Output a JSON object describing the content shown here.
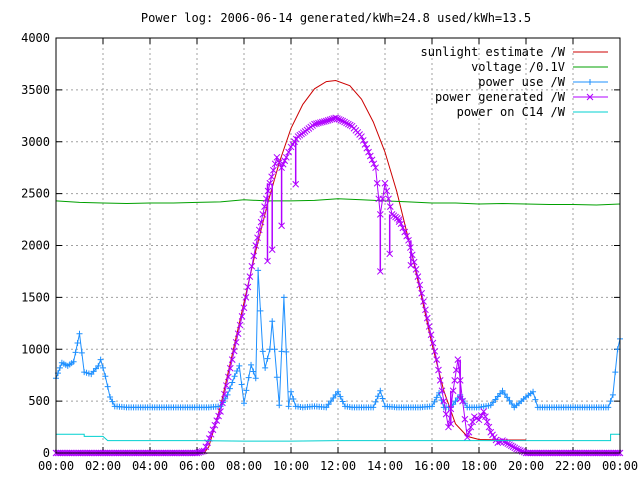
{
  "chart_data": {
    "type": "line",
    "title": "Power log: 2006-06-14 generated/kWh=24.8 used/kWh=13.5",
    "xlabel": "",
    "ylabel": "",
    "xlim": [
      "00:00",
      "24:00"
    ],
    "ylim": [
      0,
      4000
    ],
    "grid": true,
    "legend_position": "top-right",
    "x_ticks": [
      "00:00",
      "02:00",
      "04:00",
      "06:00",
      "08:00",
      "10:00",
      "12:00",
      "14:00",
      "16:00",
      "18:00",
      "20:00",
      "22:00",
      "00:00"
    ],
    "y_ticks": [
      "0",
      "500",
      "1000",
      "1500",
      "2000",
      "2500",
      "3000",
      "3500",
      "4000"
    ],
    "series": [
      {
        "name": "sunlight estimate /W",
        "color": "#cc0000",
        "marker": "none",
        "points": [
          [
            6.3,
            0
          ],
          [
            6.5,
            60
          ],
          [
            7,
            450
          ],
          [
            7.5,
            950
          ],
          [
            8,
            1450
          ],
          [
            8.5,
            1950
          ],
          [
            9,
            2400
          ],
          [
            9.5,
            2800
          ],
          [
            10,
            3130
          ],
          [
            10.5,
            3360
          ],
          [
            11,
            3510
          ],
          [
            11.5,
            3580
          ],
          [
            11.9,
            3590
          ],
          [
            12.5,
            3540
          ],
          [
            13,
            3410
          ],
          [
            13.5,
            3190
          ],
          [
            14,
            2900
          ],
          [
            14.5,
            2520
          ],
          [
            15,
            2060
          ],
          [
            15.5,
            1560
          ],
          [
            16,
            1050
          ],
          [
            16.5,
            600
          ],
          [
            17,
            280
          ],
          [
            17.5,
            160
          ],
          [
            18,
            130
          ],
          [
            19,
            125
          ],
          [
            20,
            125
          ]
        ]
      },
      {
        "name": "voltage /0.1V",
        "color": "#00a000",
        "marker": "none",
        "points": [
          [
            0,
            2430
          ],
          [
            1,
            2415
          ],
          [
            2,
            2410
          ],
          [
            3,
            2405
          ],
          [
            4,
            2410
          ],
          [
            5,
            2410
          ],
          [
            6,
            2415
          ],
          [
            7,
            2420
          ],
          [
            8,
            2440
          ],
          [
            9,
            2430
          ],
          [
            10,
            2430
          ],
          [
            11,
            2435
          ],
          [
            12,
            2450
          ],
          [
            13,
            2440
          ],
          [
            14,
            2430
          ],
          [
            15,
            2420
          ],
          [
            16,
            2410
          ],
          [
            17,
            2410
          ],
          [
            18,
            2400
          ],
          [
            19,
            2405
          ],
          [
            20,
            2400
          ],
          [
            21,
            2395
          ],
          [
            22,
            2395
          ],
          [
            23,
            2390
          ],
          [
            24,
            2400
          ]
        ]
      },
      {
        "name": "power use /W",
        "color": "#1e90ff",
        "marker": "plus",
        "points": [
          [
            0,
            720
          ],
          [
            0.25,
            870
          ],
          [
            0.5,
            840
          ],
          [
            0.75,
            880
          ],
          [
            1,
            1150
          ],
          [
            1.2,
            780
          ],
          [
            1.5,
            760
          ],
          [
            1.8,
            840
          ],
          [
            1.9,
            900
          ],
          [
            2.1,
            740
          ],
          [
            2.3,
            540
          ],
          [
            2.5,
            450
          ],
          [
            3,
            440
          ],
          [
            3.5,
            440
          ],
          [
            4,
            440
          ],
          [
            4.5,
            440
          ],
          [
            5,
            440
          ],
          [
            5.5,
            440
          ],
          [
            6,
            440
          ],
          [
            6.5,
            440
          ],
          [
            7,
            450
          ],
          [
            7.3,
            560
          ],
          [
            7.6,
            740
          ],
          [
            7.8,
            840
          ],
          [
            8,
            480
          ],
          [
            8.3,
            850
          ],
          [
            8.5,
            720
          ],
          [
            8.6,
            1760
          ],
          [
            8.8,
            980
          ],
          [
            8.9,
            820
          ],
          [
            9.1,
            1000
          ],
          [
            9.2,
            1270
          ],
          [
            9.3,
            1000
          ],
          [
            9.5,
            460
          ],
          [
            9.7,
            1500
          ],
          [
            9.9,
            450
          ],
          [
            10,
            590
          ],
          [
            10.2,
            450
          ],
          [
            10.5,
            440
          ],
          [
            11,
            450
          ],
          [
            11.5,
            440
          ],
          [
            12,
            590
          ],
          [
            12.3,
            450
          ],
          [
            12.6,
            440
          ],
          [
            13,
            440
          ],
          [
            13.5,
            440
          ],
          [
            13.8,
            600
          ],
          [
            14,
            450
          ],
          [
            14.5,
            440
          ],
          [
            15,
            440
          ],
          [
            15.5,
            440
          ],
          [
            16,
            450
          ],
          [
            16.3,
            580
          ],
          [
            16.5,
            440
          ],
          [
            16.8,
            440
          ],
          [
            17.2,
            560
          ],
          [
            17.5,
            440
          ],
          [
            18,
            440
          ],
          [
            18.5,
            460
          ],
          [
            19,
            600
          ],
          [
            19.5,
            440
          ],
          [
            20,
            540
          ],
          [
            20.3,
            590
          ],
          [
            20.5,
            440
          ],
          [
            21,
            440
          ],
          [
            21.5,
            440
          ],
          [
            22,
            440
          ],
          [
            22.5,
            440
          ],
          [
            23,
            440
          ],
          [
            23.5,
            440
          ],
          [
            23.7,
            560
          ],
          [
            23.9,
            1000
          ],
          [
            24,
            1100
          ]
        ]
      },
      {
        "name": "power generated /W",
        "color": "#b000ff",
        "marker": "cross",
        "points": [
          [
            0,
            0
          ],
          [
            1,
            0
          ],
          [
            2,
            0
          ],
          [
            3,
            0
          ],
          [
            4,
            0
          ],
          [
            5,
            0
          ],
          [
            6,
            0
          ],
          [
            6.3,
            20
          ],
          [
            6.6,
            180
          ],
          [
            7,
            400
          ],
          [
            7.5,
            900
          ],
          [
            8,
            1400
          ],
          [
            8.5,
            2000
          ],
          [
            8.8,
            2300
          ],
          [
            9.1,
            2600
          ],
          [
            9.4,
            2850
          ],
          [
            9.6,
            2750
          ],
          [
            9.8,
            2850
          ],
          [
            10,
            2950
          ],
          [
            10.3,
            3050
          ],
          [
            10.6,
            3100
          ],
          [
            11,
            3170
          ],
          [
            11.5,
            3200
          ],
          [
            11.9,
            3230
          ],
          [
            12.2,
            3200
          ],
          [
            12.6,
            3150
          ],
          [
            13,
            3050
          ],
          [
            13.3,
            2900
          ],
          [
            13.6,
            2750
          ],
          [
            13.8,
            2300
          ],
          [
            14,
            2600
          ],
          [
            14.3,
            2300
          ],
          [
            14.6,
            2250
          ],
          [
            15,
            2050
          ],
          [
            15.4,
            1700
          ],
          [
            15.8,
            1300
          ],
          [
            16.2,
            900
          ],
          [
            16.5,
            500
          ],
          [
            16.7,
            250
          ],
          [
            16.9,
            600
          ],
          [
            17.1,
            900
          ],
          [
            17.3,
            500
          ],
          [
            17.5,
            150
          ],
          [
            17.8,
            350
          ],
          [
            18,
            320
          ],
          [
            18.2,
            400
          ],
          [
            18.5,
            200
          ],
          [
            18.8,
            100
          ],
          [
            19,
            120
          ],
          [
            19.3,
            80
          ],
          [
            19.6,
            40
          ],
          [
            20,
            0
          ],
          [
            21,
            0
          ],
          [
            22,
            0
          ],
          [
            23,
            0
          ],
          [
            24,
            0
          ]
        ],
        "dips": [
          [
            9.0,
            1850
          ],
          [
            9.2,
            1960
          ],
          [
            9.6,
            2190
          ],
          [
            10.2,
            2590
          ],
          [
            13.8,
            1750
          ],
          [
            14.2,
            1920
          ],
          [
            14.6,
            2230
          ],
          [
            15.1,
            1810
          ],
          [
            16.8,
            280
          ],
          [
            17.2,
            520
          ]
        ]
      },
      {
        "name": "power on C14 /W",
        "color": "#00d0d0",
        "marker": "none",
        "points": [
          [
            0,
            180
          ],
          [
            1.2,
            180
          ],
          [
            1.2,
            160
          ],
          [
            2,
            160
          ],
          [
            2.2,
            120
          ],
          [
            4,
            120
          ],
          [
            6,
            120
          ],
          [
            8,
            115
          ],
          [
            10,
            115
          ],
          [
            12,
            120
          ],
          [
            14,
            120
          ],
          [
            16,
            120
          ],
          [
            18,
            120
          ],
          [
            20,
            120
          ],
          [
            22,
            120
          ],
          [
            23.6,
            120
          ],
          [
            23.6,
            180
          ],
          [
            24,
            180
          ]
        ]
      }
    ]
  }
}
